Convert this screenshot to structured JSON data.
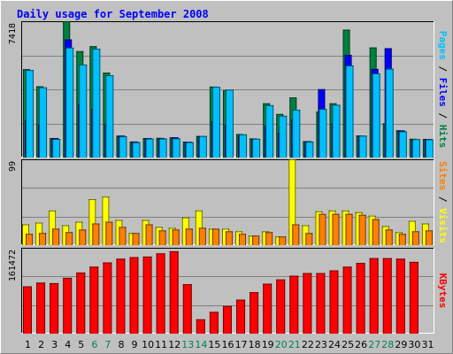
{
  "chart_data": [
    {
      "type": "bar",
      "title": "Daily usage for September 2008",
      "max_label": "7418",
      "legend": [
        {
          "name": "Pages",
          "color": "#00c0ff"
        },
        {
          "name": "Files",
          "color": "#0000ff"
        },
        {
          "name": "Hits",
          "color": "#008040"
        }
      ],
      "legend_separator": " / ",
      "ylim": [
        0,
        7418
      ],
      "categories": [
        "1",
        "2",
        "3",
        "4",
        "5",
        "6",
        "7",
        "8",
        "9",
        "10",
        "11",
        "12",
        "13",
        "14",
        "15",
        "16",
        "17",
        "18",
        "19",
        "20",
        "21",
        "22",
        "23",
        "24",
        "25",
        "26",
        "27",
        "28",
        "29",
        "30",
        "31"
      ],
      "weekend_days": [
        "6",
        "7",
        "13",
        "14",
        "20",
        "21",
        "27",
        "28"
      ],
      "series": [
        {
          "name": "Hits",
          "values": [
            4810,
            3880,
            1050,
            7418,
            5790,
            6060,
            4620,
            1190,
            870,
            1060,
            1070,
            1100,
            860,
            1170,
            3860,
            3650,
            1280,
            1040,
            2950,
            2370,
            3270,
            890,
            2500,
            2950,
            6960,
            1200,
            5990,
            1860,
            1480,
            1020,
            1010
          ]
        },
        {
          "name": "Files",
          "values": [
            2050,
            1800,
            1060,
            6430,
            2900,
            2650,
            1840,
            1190,
            870,
            1060,
            1050,
            1100,
            860,
            1170,
            1980,
            1790,
            1180,
            1020,
            1760,
            1350,
            2080,
            890,
            3720,
            1870,
            5590,
            1190,
            4820,
            5950,
            1470,
            990,
            1010
          ]
        },
        {
          "name": "Pages",
          "values": [
            4760,
            3820,
            1010,
            5980,
            5060,
            5920,
            4480,
            1150,
            830,
            1030,
            1030,
            1040,
            840,
            1170,
            3850,
            3700,
            1260,
            1020,
            2850,
            2270,
            2600,
            860,
            2640,
            2870,
            5010,
            1190,
            4580,
            4830,
            1420,
            1000,
            990
          ]
        }
      ]
    },
    {
      "type": "bar",
      "max_label": "99",
      "legend": [
        {
          "name": "Sites",
          "color": "#ff8000"
        },
        {
          "name": "Visits",
          "color": "#ffff00"
        }
      ],
      "legend_separator": " / ",
      "ylim": [
        0,
        99
      ],
      "categories": [
        "1",
        "2",
        "3",
        "4",
        "5",
        "6",
        "7",
        "8",
        "9",
        "10",
        "11",
        "12",
        "13",
        "14",
        "15",
        "16",
        "17",
        "18",
        "19",
        "20",
        "21",
        "22",
        "23",
        "24",
        "25",
        "26",
        "27",
        "28",
        "29",
        "30",
        "31"
      ],
      "series": [
        {
          "name": "Visits",
          "values": [
            24,
            26,
            40,
            23,
            27,
            53,
            56,
            29,
            14,
            29,
            21,
            20,
            32,
            40,
            19,
            19,
            16,
            11,
            16,
            10,
            99,
            23,
            39,
            40,
            40,
            38,
            34,
            22,
            15,
            28,
            25
          ]
        },
        {
          "name": "Sites",
          "values": [
            13,
            14,
            19,
            15,
            18,
            25,
            27,
            21,
            14,
            24,
            17,
            18,
            19,
            20,
            19,
            16,
            13,
            11,
            15,
            10,
            24,
            14,
            36,
            36,
            36,
            35,
            30,
            18,
            13,
            16,
            17
          ]
        }
      ]
    },
    {
      "type": "bar",
      "max_label": "161472",
      "legend": [
        {
          "name": "KBytes",
          "color": "#ff0000"
        }
      ],
      "legend_separator": " / ",
      "ylim": [
        0,
        161472
      ],
      "categories": [
        "1",
        "2",
        "3",
        "4",
        "5",
        "6",
        "7",
        "8",
        "9",
        "10",
        "11",
        "12",
        "13",
        "14",
        "15",
        "16",
        "17",
        "18",
        "19",
        "20",
        "21",
        "22",
        "23",
        "24",
        "25",
        "26",
        "27",
        "28",
        "29",
        "30",
        "31"
      ],
      "series": [
        {
          "name": "KBytes",
          "values": [
            89000,
            96000,
            95000,
            105000,
            115000,
            126000,
            134000,
            141000,
            144000,
            145000,
            151000,
            155000,
            93000,
            27000,
            41000,
            52000,
            64000,
            78000,
            94000,
            102000,
            109000,
            114000,
            114000,
            119000,
            126000,
            133000,
            142000,
            142000,
            141000,
            135000,
            0
          ]
        }
      ]
    }
  ]
}
